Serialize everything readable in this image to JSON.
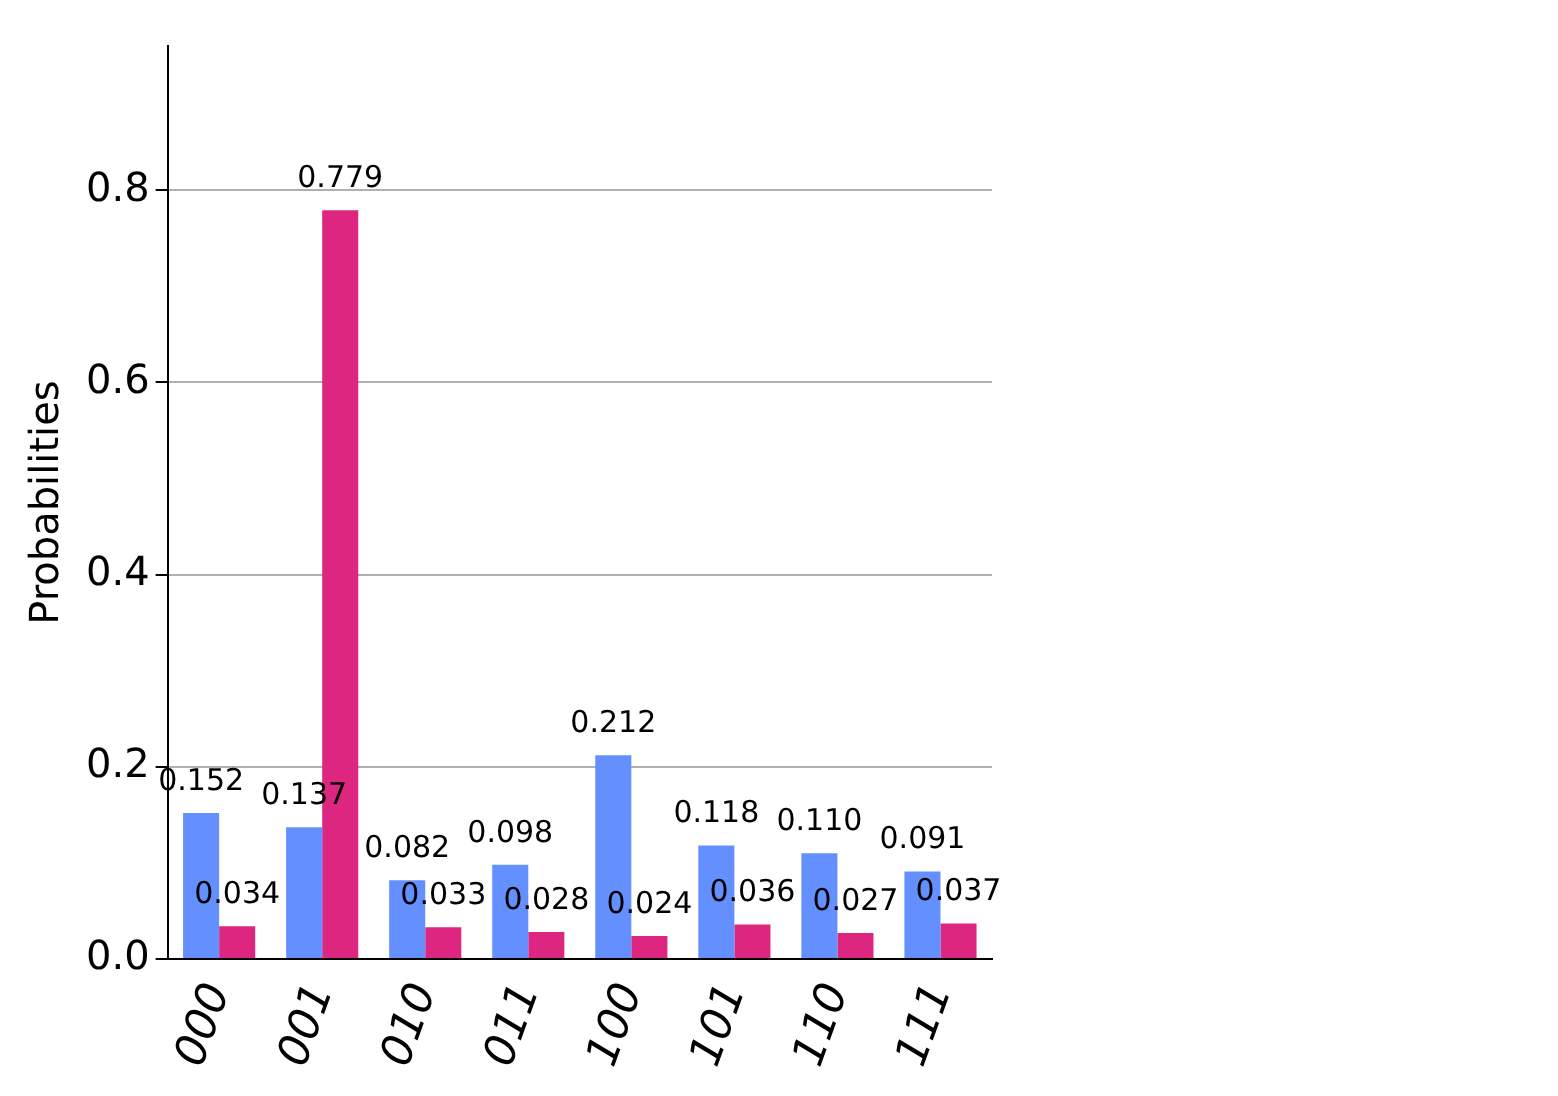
{
  "chart_data": {
    "type": "bar",
    "ylabel": "Probabilities",
    "categories": [
      "000",
      "001",
      "010",
      "011",
      "100",
      "101",
      "110",
      "111"
    ],
    "series": [
      {
        "color": "#648fff",
        "values": [
          0.152,
          0.137,
          0.082,
          0.098,
          0.212,
          0.118,
          0.11,
          0.091
        ],
        "value_labels": [
          "0.152",
          "0.137",
          "0.082",
          "0.098",
          "0.212",
          "0.118",
          "0.110",
          "0.091"
        ]
      },
      {
        "color": "#dc267f",
        "values": [
          0.034,
          0.779,
          0.033,
          0.028,
          0.024,
          0.036,
          0.027,
          0.037
        ],
        "value_labels": [
          "0.034",
          "0.779",
          "0.033",
          "0.028",
          "0.024",
          "0.036",
          "0.027",
          "0.037"
        ]
      }
    ],
    "ylim": [
      0,
      0.95
    ],
    "yticks": [
      {
        "value": 0,
        "label": "0.0"
      },
      {
        "value": 0.2,
        "label": "0.2"
      },
      {
        "value": 0.4,
        "label": "0.4"
      },
      {
        "value": 0.6,
        "label": "0.6"
      },
      {
        "value": 0.8,
        "label": "0.8"
      }
    ],
    "grid": "y"
  }
}
